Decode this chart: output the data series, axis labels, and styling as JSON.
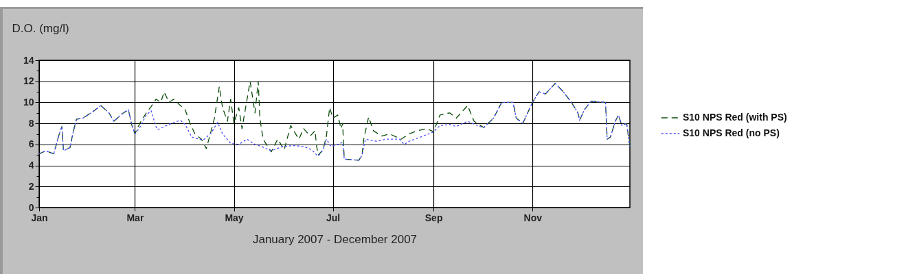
{
  "chart_data": {
    "type": "line",
    "ylabel": "D.O. (mg/l)",
    "xlabel": "January 2007 - December 2007",
    "xlim": [
      "2007-01-01",
      "2007-12-31"
    ],
    "xticks": [
      {
        "value": "2007-01-01",
        "label": "Jan"
      },
      {
        "value": "2007-03-01",
        "label": "Mar"
      },
      {
        "value": "2007-05-01",
        "label": "May"
      },
      {
        "value": "2007-07-01",
        "label": "Jul"
      },
      {
        "value": "2007-09-01",
        "label": "Sep"
      },
      {
        "value": "2007-11-01",
        "label": "Nov"
      }
    ],
    "ylim": [
      0,
      14
    ],
    "yticks": [
      0,
      {
        "value": 1,
        "label": null
      },
      2,
      {
        "value": 3,
        "label": null
      },
      4,
      {
        "value": 5,
        "label": null
      },
      6,
      {
        "value": 7,
        "label": null
      },
      8,
      {
        "value": 9,
        "label": null
      },
      10,
      {
        "value": 11,
        "label": null
      },
      12,
      {
        "value": 13,
        "label": null
      },
      14
    ],
    "grid": true,
    "legend": "right",
    "series": [
      {
        "name": "S10 NPS Red (with PS)",
        "color": "#0b4d0b",
        "line_style": "dashed",
        "x": [
          "2007-01-01",
          "2007-01-05",
          "2007-01-10",
          "2007-01-13",
          "2007-01-15",
          "2007-01-16",
          "2007-01-20",
          "2007-01-22",
          "2007-01-24",
          "2007-01-28",
          "2007-02-01",
          "2007-02-03",
          "2007-02-08",
          "2007-02-13",
          "2007-02-16",
          "2007-02-21",
          "2007-02-25",
          "2007-02-27",
          "2007-03-01",
          "2007-03-04",
          "2007-03-08",
          "2007-03-11",
          "2007-03-14",
          "2007-03-17",
          "2007-03-19",
          "2007-03-22",
          "2007-03-25",
          "2007-03-29",
          "2007-04-01",
          "2007-04-04",
          "2007-04-07",
          "2007-04-11",
          "2007-04-14",
          "2007-04-17",
          "2007-04-19",
          "2007-04-22",
          "2007-04-24",
          "2007-04-27",
          "2007-04-29",
          "2007-05-01",
          "2007-05-04",
          "2007-05-06",
          "2007-05-11",
          "2007-05-14",
          "2007-05-16",
          "2007-05-17",
          "2007-05-19",
          "2007-05-24",
          "2007-05-28",
          "2007-06-01",
          "2007-06-05",
          "2007-06-10",
          "2007-06-13",
          "2007-06-17",
          "2007-06-20",
          "2007-06-21",
          "2007-06-22",
          "2007-06-25",
          "2007-06-27",
          "2007-06-29",
          "2007-07-01",
          "2007-07-04",
          "2007-07-06",
          "2007-07-07",
          "2007-07-08",
          "2007-07-17",
          "2007-07-19",
          "2007-07-20",
          "2007-07-23",
          "2007-07-26",
          "2007-07-31",
          "2007-08-05",
          "2007-08-12",
          "2007-08-17",
          "2007-08-22",
          "2007-08-28",
          "2007-09-01",
          "2007-09-04",
          "2007-09-05",
          "2007-09-11",
          "2007-09-15",
          "2007-09-22",
          "2007-09-26",
          "2007-10-02",
          "2007-10-08",
          "2007-10-13",
          "2007-10-20",
          "2007-10-22",
          "2007-10-26",
          "2007-10-29",
          "2007-11-01",
          "2007-11-05",
          "2007-11-09",
          "2007-11-15",
          "2007-11-20",
          "2007-11-25",
          "2007-11-29",
          "2007-11-30",
          "2007-12-03",
          "2007-12-07",
          "2007-12-16",
          "2007-12-17",
          "2007-12-19",
          "2007-12-22",
          "2007-12-24",
          "2007-12-26",
          "2007-12-29",
          "2007-12-31"
        ],
        "values": [
          5.1,
          5.4,
          5.1,
          6.8,
          7.7,
          5.4,
          5.7,
          7.2,
          8.4,
          8.5,
          8.9,
          9.1,
          9.7,
          9.0,
          8.2,
          8.9,
          9.3,
          7.9,
          7.0,
          8.0,
          9.0,
          9.6,
          10.3,
          10.0,
          11.0,
          10.0,
          10.3,
          9.7,
          9.3,
          8.0,
          7.0,
          6.5,
          5.6,
          7.3,
          8.5,
          11.5,
          9.5,
          8.2,
          10.3,
          8.0,
          9.5,
          7.5,
          12.0,
          9.0,
          12.0,
          8.5,
          6.5,
          5.3,
          6.5,
          5.5,
          7.8,
          6.5,
          7.5,
          6.8,
          7.3,
          5.8,
          5.0,
          5.5,
          6.8,
          9.5,
          8.5,
          8.8,
          7.5,
          8.0,
          4.6,
          4.5,
          5.0,
          6.5,
          8.6,
          7.3,
          6.8,
          7.0,
          6.5,
          7.0,
          7.3,
          7.5,
          7.2,
          8.4,
          8.8,
          9.0,
          8.5,
          9.7,
          8.2,
          7.6,
          8.5,
          10.0,
          10.0,
          8.5,
          8.0,
          9.0,
          10.0,
          11.0,
          10.8,
          11.8,
          11.0,
          10.0,
          9.0,
          8.3,
          9.3,
          10.1,
          10.0,
          6.5,
          6.7,
          8.2,
          8.8,
          7.8,
          8.0,
          5.8
        ]
      },
      {
        "name": "S10 NPS Red (no PS)",
        "color": "#4a4aff",
        "line_style": "dotted",
        "x": [
          "2007-01-01",
          "2007-01-05",
          "2007-01-10",
          "2007-01-13",
          "2007-01-15",
          "2007-01-16",
          "2007-01-20",
          "2007-01-22",
          "2007-01-24",
          "2007-01-28",
          "2007-02-01",
          "2007-02-03",
          "2007-02-08",
          "2007-02-13",
          "2007-02-16",
          "2007-02-21",
          "2007-02-25",
          "2007-02-27",
          "2007-03-01",
          "2007-03-04",
          "2007-03-08",
          "2007-03-11",
          "2007-03-14",
          "2007-03-15",
          "2007-03-22",
          "2007-03-29",
          "2007-04-01",
          "2007-04-05",
          "2007-04-12",
          "2007-04-17",
          "2007-04-21",
          "2007-04-24",
          "2007-04-29",
          "2007-05-04",
          "2007-05-09",
          "2007-05-14",
          "2007-05-18",
          "2007-05-24",
          "2007-05-31",
          "2007-06-07",
          "2007-06-13",
          "2007-06-18",
          "2007-06-21",
          "2007-06-22",
          "2007-06-25",
          "2007-06-27",
          "2007-06-30",
          "2007-07-04",
          "2007-07-07",
          "2007-07-08",
          "2007-07-17",
          "2007-07-19",
          "2007-07-21",
          "2007-07-28",
          "2007-08-03",
          "2007-08-11",
          "2007-08-14",
          "2007-08-17",
          "2007-08-24",
          "2007-08-29",
          "2007-09-01",
          "2007-09-05",
          "2007-09-11",
          "2007-09-15",
          "2007-09-22",
          "2007-09-28",
          "2007-10-02",
          "2007-10-08",
          "2007-10-13",
          "2007-10-20",
          "2007-10-22",
          "2007-10-26",
          "2007-10-29",
          "2007-11-01",
          "2007-11-05",
          "2007-11-09",
          "2007-11-15",
          "2007-11-20",
          "2007-11-25",
          "2007-11-29",
          "2007-11-30",
          "2007-12-03",
          "2007-12-07",
          "2007-12-16",
          "2007-12-17",
          "2007-12-19",
          "2007-12-22",
          "2007-12-24",
          "2007-12-26",
          "2007-12-29",
          "2007-12-31"
        ],
        "values": [
          5.1,
          5.4,
          5.1,
          6.8,
          7.7,
          5.4,
          5.7,
          7.2,
          8.4,
          8.5,
          8.9,
          9.1,
          9.7,
          9.0,
          8.2,
          8.9,
          9.3,
          7.9,
          7.0,
          7.6,
          8.8,
          9.2,
          7.7,
          7.4,
          7.9,
          8.3,
          7.9,
          6.7,
          6.4,
          7.1,
          8.1,
          7.0,
          6.1,
          6.0,
          6.5,
          6.0,
          5.8,
          5.4,
          5.8,
          5.9,
          5.8,
          5.5,
          5.0,
          4.9,
          5.5,
          6.5,
          5.8,
          6.0,
          6.2,
          4.6,
          4.5,
          5.0,
          6.5,
          6.3,
          6.5,
          6.5,
          6.0,
          6.3,
          6.7,
          7.0,
          7.2,
          7.8,
          7.9,
          7.7,
          8.2,
          7.8,
          7.6,
          8.5,
          10.0,
          10.0,
          8.5,
          8.0,
          9.0,
          10.0,
          11.0,
          10.8,
          11.8,
          11.0,
          10.0,
          9.0,
          8.3,
          9.3,
          10.1,
          10.0,
          6.5,
          6.7,
          8.2,
          8.8,
          7.8,
          8.0,
          5.8
        ]
      }
    ]
  }
}
